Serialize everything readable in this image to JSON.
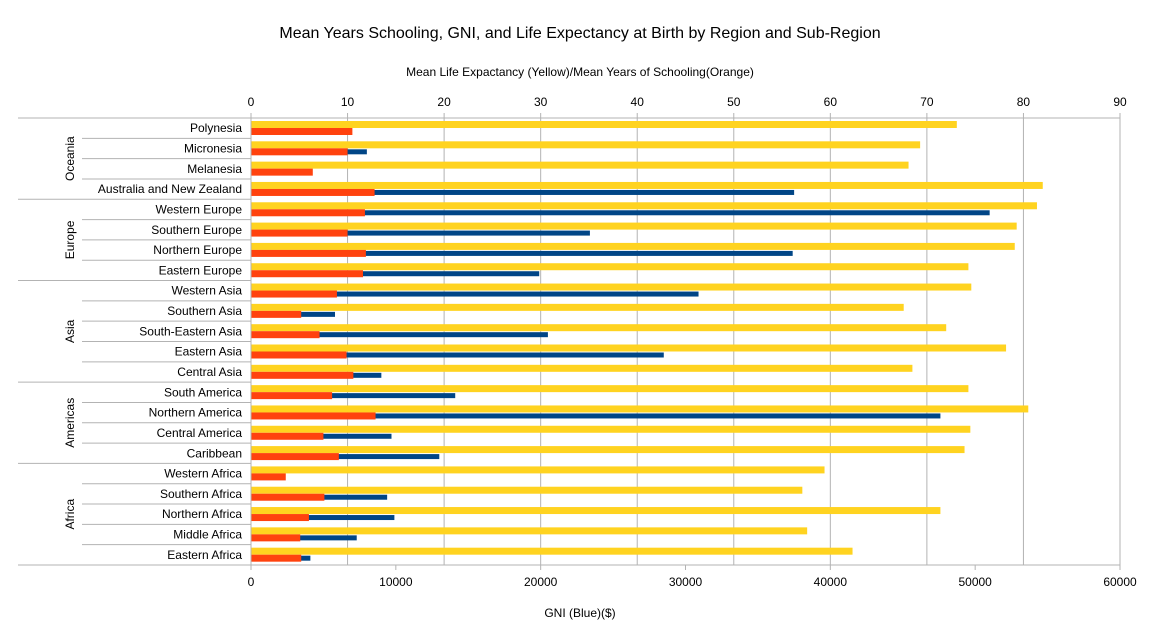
{
  "chart_data": {
    "type": "bar",
    "orientation": "horizontal",
    "title": "Mean Years Schooling, GNI, and Life Expectancy at Birth by Region and Sub-Region",
    "top_axis": {
      "label": "Mean Life Expactancy (Yellow)/Mean Years of Schooling(Orange)",
      "range": [
        0,
        90
      ],
      "ticks": [
        0,
        10,
        20,
        30,
        40,
        50,
        60,
        70,
        80,
        90
      ]
    },
    "bottom_axis": {
      "label": "GNI (Blue)($)",
      "range": [
        0,
        60000
      ],
      "ticks": [
        0,
        10000,
        20000,
        30000,
        40000,
        50000,
        60000
      ]
    },
    "grid": true,
    "groups": [
      {
        "name": "Oceania",
        "categories": [
          "Polynesia",
          "Micronesia",
          "Melanesia",
          "Australia and New Zealand"
        ]
      },
      {
        "name": "Europe",
        "categories": [
          "Western Europe",
          "Southern Europe",
          "Northern Europe",
          "Eastern Europe"
        ]
      },
      {
        "name": "Asia",
        "categories": [
          "Western Asia",
          "Southern Asia",
          "South-Eastern Asia",
          "Eastern Asia",
          "Central Asia"
        ]
      },
      {
        "name": "Americas",
        "categories": [
          "South America",
          "Northern America",
          "Central America",
          "Caribbean"
        ]
      },
      {
        "name": "Africa",
        "categories": [
          "Western Africa",
          "Southern Africa",
          "Northern Africa",
          "Middle Africa",
          "Eastern Africa"
        ]
      }
    ],
    "categories": [
      "Polynesia",
      "Micronesia",
      "Melanesia",
      "Australia and New Zealand",
      "Western Europe",
      "Southern Europe",
      "Northern Europe",
      "Eastern Europe",
      "Western Asia",
      "Southern Asia",
      "South-Eastern Asia",
      "Eastern Asia",
      "Central Asia",
      "South America",
      "Northern America",
      "Central America",
      "Caribbean",
      "Western Africa",
      "Southern Africa",
      "Northern Africa",
      "Middle Africa",
      "Eastern Africa"
    ],
    "series": [
      {
        "axis": "top",
        "color": "#ffd320",
        "values": [
          73.1,
          69.3,
          68.1,
          82.0,
          81.4,
          79.3,
          79.1,
          74.3,
          74.6,
          67.6,
          72.0,
          78.2,
          68.5,
          74.3,
          80.5,
          74.5,
          73.9,
          59.4,
          57.1,
          71.4,
          57.6,
          62.3
        ]
      },
      {
        "axis": "bottom",
        "color": "#004586",
        "values": [
          5000,
          8000,
          1300,
          37500,
          51000,
          23400,
          37400,
          19900,
          30900,
          5800,
          20500,
          28500,
          9000,
          14100,
          47600,
          9700,
          13000,
          2200,
          9400,
          9900,
          7300,
          4100
        ]
      },
      {
        "axis": "top",
        "color": "#ff420e",
        "values": [
          10.5,
          10.0,
          6.4,
          12.8,
          11.8,
          10.0,
          11.9,
          11.6,
          8.9,
          5.2,
          7.1,
          9.9,
          10.6,
          8.4,
          12.9,
          7.5,
          9.1,
          3.6,
          7.6,
          6.0,
          5.1,
          5.2
        ]
      }
    ]
  }
}
